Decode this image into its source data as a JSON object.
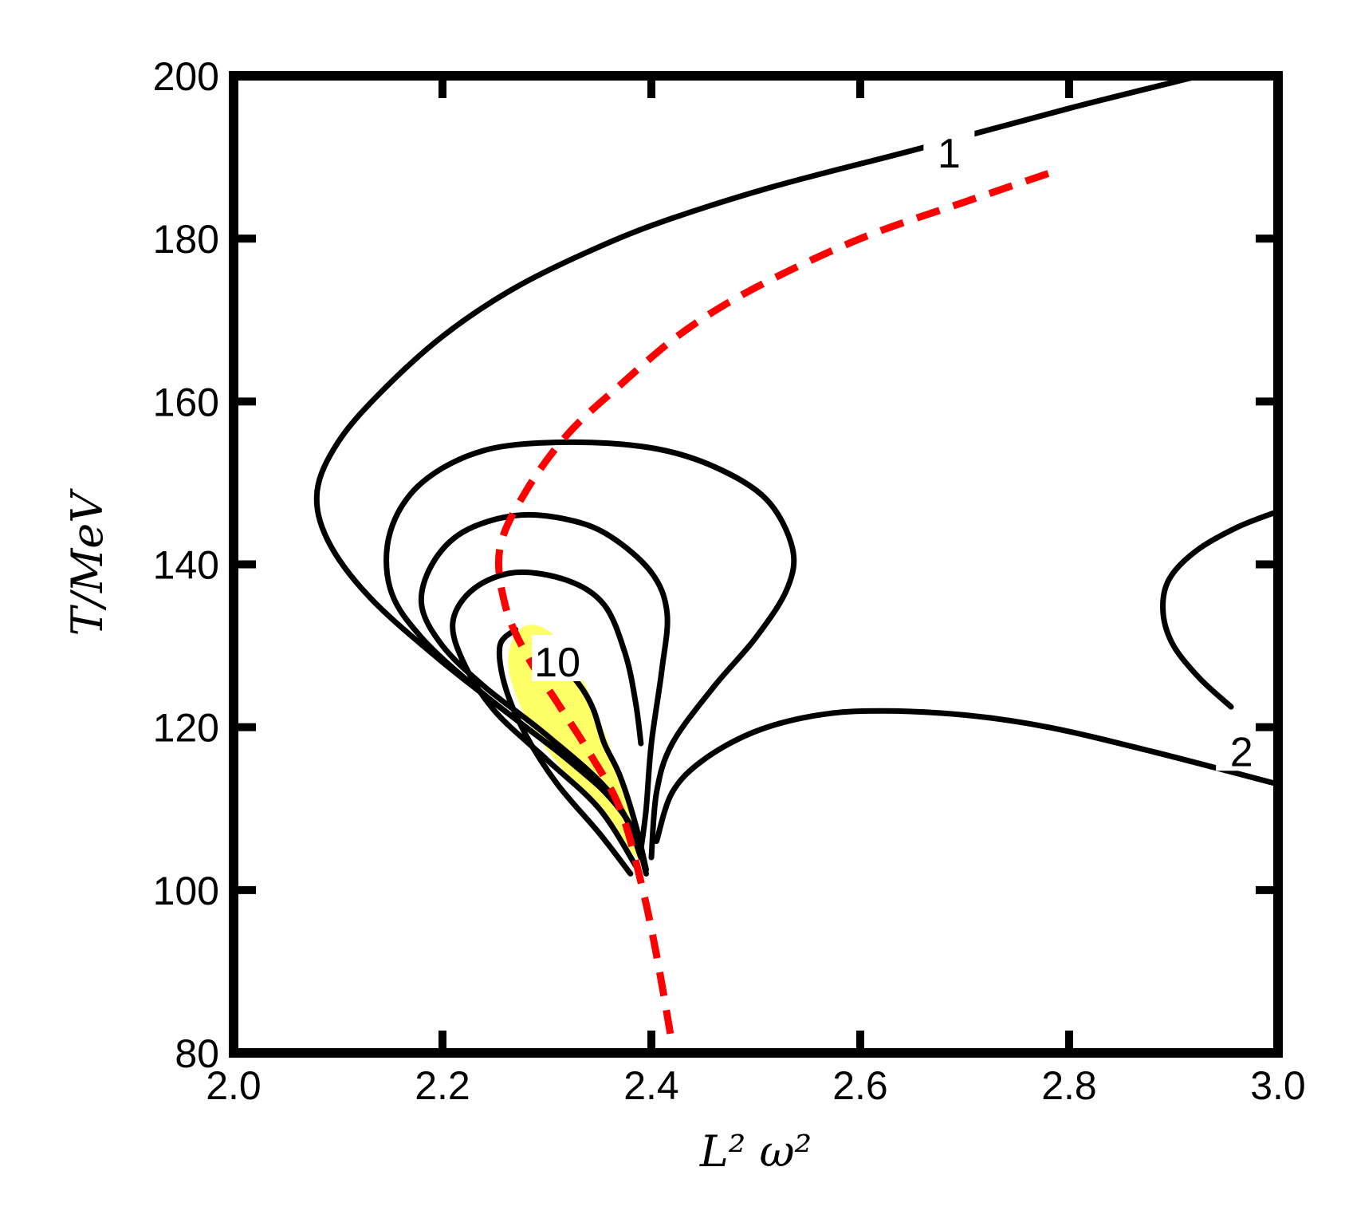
{
  "chart_data": {
    "type": "line",
    "title": "",
    "xlabel": "L² ω²",
    "ylabel": "T/MeV",
    "xlim": [
      2.0,
      3.0
    ],
    "ylim": [
      80,
      200
    ],
    "x_ticks": [
      "2.0",
      "2.2",
      "2.4",
      "2.6",
      "2.8",
      "3.0"
    ],
    "y_ticks": [
      "80",
      "100",
      "120",
      "140",
      "160",
      "180",
      "200"
    ],
    "grid": false,
    "legend": "none",
    "colors": {
      "contour": "#000000",
      "dashed_curve": "#ff0000",
      "highlight_region": "#ffff66"
    },
    "contour_labels": [
      {
        "text": "1",
        "x": 2.685,
        "y": 190.5
      },
      {
        "text": "10",
        "x": 2.31,
        "y": 128
      },
      {
        "text": "2",
        "x": 2.965,
        "y": 117
      }
    ],
    "contours": [
      {
        "name": "1",
        "points": [
          [
            2.925,
            200
          ],
          [
            2.8,
            196
          ],
          [
            2.655,
            191
          ],
          [
            2.52,
            186.5
          ],
          [
            2.42,
            182.5
          ],
          [
            2.35,
            179
          ],
          [
            2.27,
            174
          ],
          [
            2.2,
            168
          ],
          [
            2.14,
            161
          ],
          [
            2.1,
            155
          ],
          [
            2.08,
            149
          ],
          [
            2.09,
            143
          ],
          [
            2.13,
            136
          ],
          [
            2.2,
            128
          ],
          [
            2.28,
            120
          ],
          [
            2.34,
            114
          ],
          [
            2.38,
            108
          ],
          [
            2.395,
            102
          ]
        ]
      },
      {
        "name": "contour-2",
        "points": [
          [
            2.39,
            104
          ],
          [
            2.37,
            110
          ],
          [
            2.32,
            116
          ],
          [
            2.24,
            124
          ],
          [
            2.18,
            131
          ],
          [
            2.15,
            137
          ],
          [
            2.15,
            144
          ],
          [
            2.18,
            150
          ],
          [
            2.24,
            154
          ],
          [
            2.32,
            155
          ],
          [
            2.4,
            154.3
          ],
          [
            2.46,
            152
          ],
          [
            2.51,
            148
          ],
          [
            2.535,
            142
          ],
          [
            2.53,
            137
          ],
          [
            2.5,
            131
          ],
          [
            2.46,
            125
          ],
          [
            2.42,
            118
          ],
          [
            2.405,
            112
          ],
          [
            2.4,
            104
          ]
        ]
      },
      {
        "name": "contour-3",
        "points": [
          [
            2.39,
            105
          ],
          [
            2.36,
            112
          ],
          [
            2.3,
            119
          ],
          [
            2.24,
            125
          ],
          [
            2.2,
            130
          ],
          [
            2.18,
            135
          ],
          [
            2.19,
            140
          ],
          [
            2.22,
            144
          ],
          [
            2.27,
            146
          ],
          [
            2.32,
            145.5
          ],
          [
            2.36,
            143.5
          ],
          [
            2.4,
            139
          ],
          [
            2.415,
            134
          ],
          [
            2.41,
            127
          ],
          [
            2.4,
            118
          ],
          [
            2.395,
            110
          ],
          [
            2.39,
            105
          ]
        ]
      },
      {
        "name": "contour-4",
        "points": [
          [
            2.385,
            103
          ],
          [
            2.35,
            110
          ],
          [
            2.3,
            116
          ],
          [
            2.25,
            122
          ],
          [
            2.22,
            128
          ],
          [
            2.21,
            133
          ],
          [
            2.23,
            137
          ],
          [
            2.27,
            139
          ],
          [
            2.32,
            138
          ],
          [
            2.355,
            135
          ],
          [
            2.375,
            129
          ],
          [
            2.385,
            123
          ],
          [
            2.39,
            118
          ]
        ]
      },
      {
        "name": "10",
        "points": [
          [
            2.38,
            102
          ],
          [
            2.35,
            107
          ],
          [
            2.31,
            113
          ],
          [
            2.28,
            119
          ],
          [
            2.26,
            125
          ],
          [
            2.255,
            130
          ],
          [
            2.27,
            132
          ]
        ]
      },
      {
        "name": "10-inner",
        "points": [
          [
            2.395,
            102.5
          ],
          [
            2.385,
            108
          ],
          [
            2.37,
            114
          ],
          [
            2.355,
            118
          ],
          [
            2.345,
            122
          ],
          [
            2.335,
            124.5
          ],
          [
            2.32,
            127
          ]
        ]
      },
      {
        "name": "contour-6",
        "points": [
          [
            2.405,
            106
          ],
          [
            2.42,
            112
          ],
          [
            2.45,
            116
          ],
          [
            2.5,
            119.5
          ],
          [
            2.56,
            121.5
          ],
          [
            2.62,
            122
          ],
          [
            2.7,
            121.5
          ],
          [
            2.78,
            120
          ],
          [
            2.88,
            117
          ],
          [
            3.0,
            113
          ]
        ]
      },
      {
        "name": "2",
        "points": [
          [
            3.0,
            146.5
          ],
          [
            2.96,
            144.5
          ],
          [
            2.92,
            141.5
          ],
          [
            2.895,
            138
          ],
          [
            2.89,
            134
          ],
          [
            2.9,
            130
          ],
          [
            2.925,
            126
          ],
          [
            2.955,
            122.5
          ]
        ]
      }
    ],
    "dashed_curve": {
      "name": "",
      "points": [
        [
          2.78,
          188
        ],
        [
          2.7,
          184.5
        ],
        [
          2.6,
          180
        ],
        [
          2.5,
          174
        ],
        [
          2.43,
          168.5
        ],
        [
          2.37,
          162
        ],
        [
          2.32,
          156
        ],
        [
          2.28,
          149
        ],
        [
          2.255,
          142
        ],
        [
          2.26,
          135
        ],
        [
          2.28,
          129
        ],
        [
          2.31,
          123
        ],
        [
          2.34,
          117
        ],
        [
          2.37,
          110
        ],
        [
          2.39,
          101
        ],
        [
          2.405,
          92
        ],
        [
          2.42,
          81
        ]
      ]
    },
    "highlight_region": {
      "points": [
        [
          2.265,
          130
        ],
        [
          2.28,
          132.5
        ],
        [
          2.305,
          131.5
        ],
        [
          2.33,
          127
        ],
        [
          2.35,
          121
        ],
        [
          2.37,
          114
        ],
        [
          2.39,
          104
        ],
        [
          2.36,
          108
        ],
        [
          2.32,
          114
        ],
        [
          2.285,
          120
        ],
        [
          2.265,
          126
        ]
      ]
    }
  }
}
